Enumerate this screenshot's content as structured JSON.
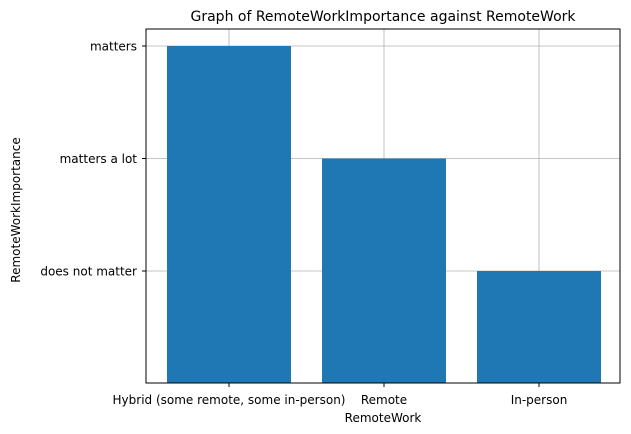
{
  "chart_data": {
    "type": "bar",
    "title": "Graph of RemoteWorkImportance against RemoteWork",
    "xlabel": "RemoteWork",
    "ylabel": "RemoteWorkImportance",
    "categories": [
      "Hybrid (some remote, some in-person)",
      "Remote",
      "In-person"
    ],
    "y_categories": [
      "does not matter",
      "matters a lot",
      "matters"
    ],
    "values": [
      "matters",
      "matters a lot",
      "does not matter"
    ],
    "grid": true,
    "bar_color": "#1f77b4"
  }
}
